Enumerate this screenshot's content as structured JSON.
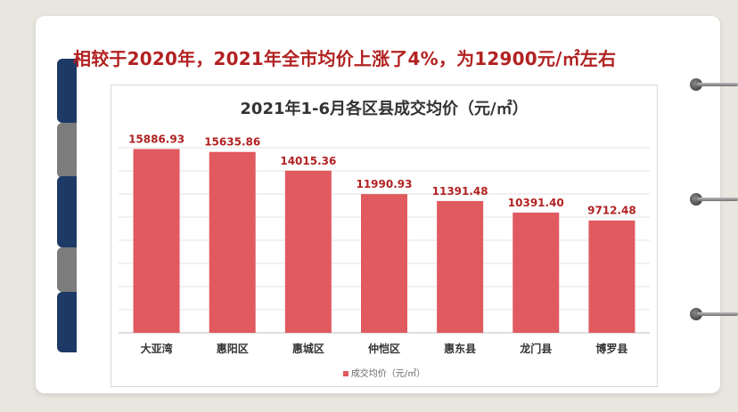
{
  "headline": "相较于2020年，2021年全市均价上涨了4%，为12900元/㎡左右",
  "chart_data": {
    "type": "bar",
    "title": "2021年1-6月各区县成交均价（元/㎡）",
    "categories": [
      "大亚湾",
      "惠阳区",
      "惠城区",
      "仲恺区",
      "惠东县",
      "龙门县",
      "博罗县"
    ],
    "series": [
      {
        "name": "成交均价（元/㎡）",
        "values": [
          15886.93,
          15635.86,
          14015.36,
          11990.93,
          11391.48,
          10391.4,
          9712.48
        ]
      }
    ],
    "value_labels": [
      "15886.93",
      "15635.86",
      "14015.36",
      "11990.93",
      "11391.48",
      "10391.40",
      "9712.48"
    ],
    "ylim": [
      0,
      16000
    ],
    "grid": true,
    "legend_position": "bottom",
    "colors": {
      "bar": "#e05a5f",
      "label": "#b22222",
      "grid": "#e3e3e3"
    }
  }
}
